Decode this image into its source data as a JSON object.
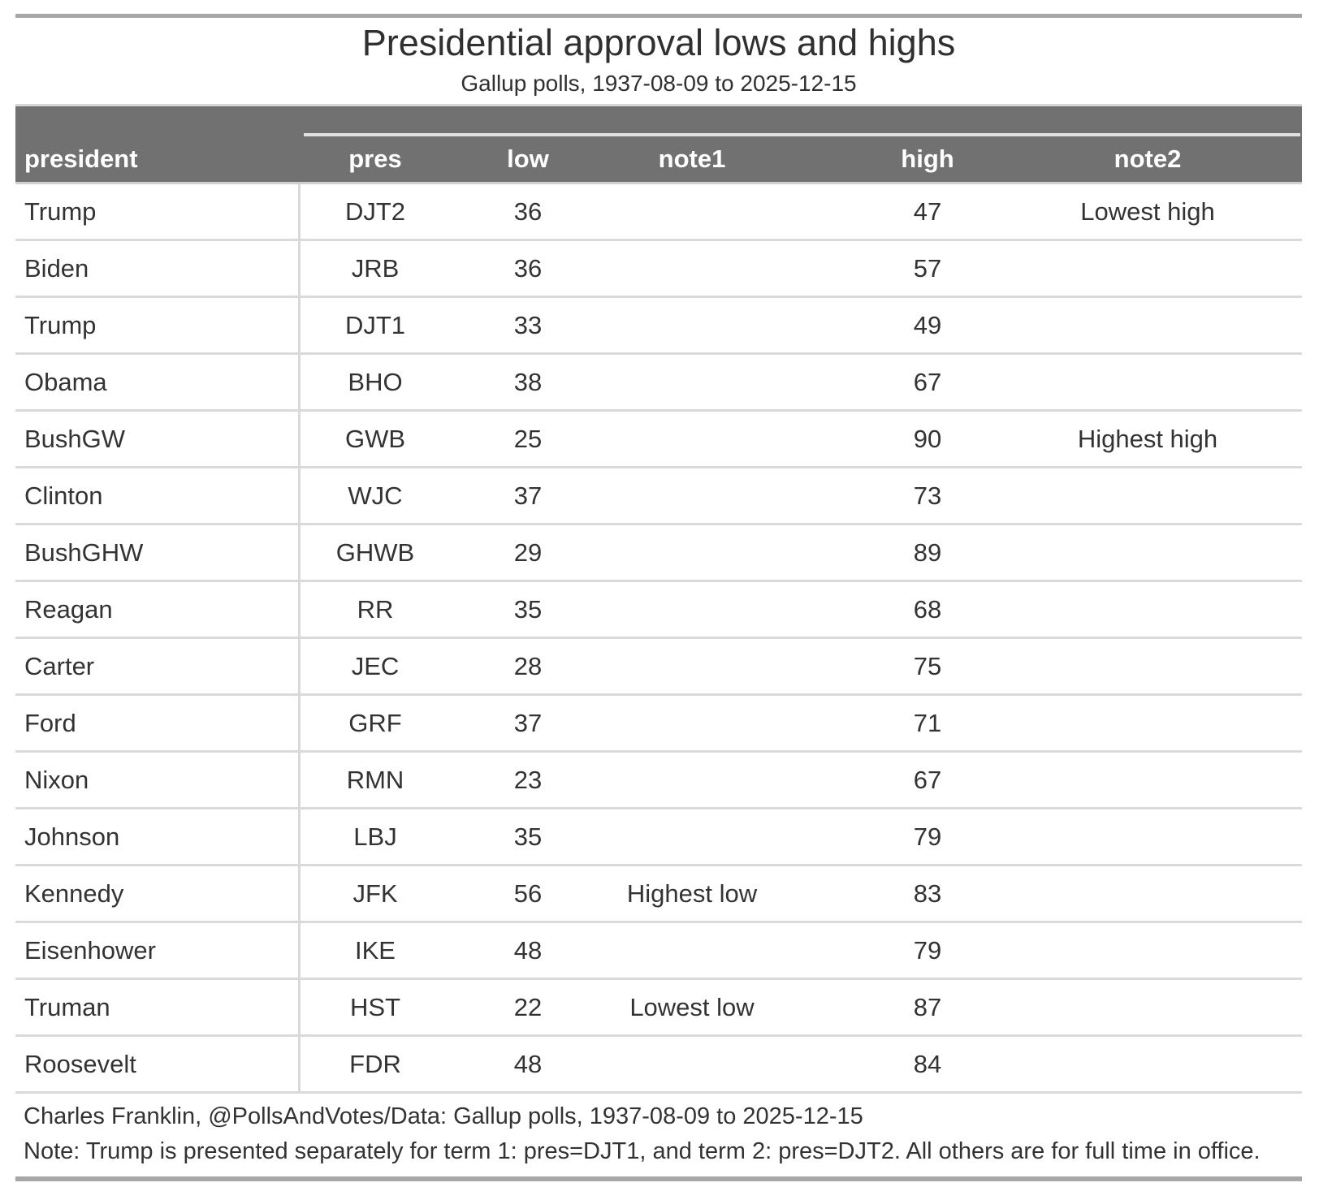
{
  "title": "Presidential approval lows and highs",
  "subtitle": "Gallup polls, 1937-08-09 to 2025-12-15",
  "chart_data": {
    "type": "table",
    "title": "Presidential approval lows and highs",
    "subtitle": "Gallup polls, 1937-08-09 to 2025-12-15",
    "columns": [
      "president",
      "pres",
      "low",
      "note1",
      "high",
      "note2"
    ],
    "rows": [
      [
        "Trump",
        "DJT2",
        36,
        "",
        47,
        "Lowest high"
      ],
      [
        "Biden",
        "JRB",
        36,
        "",
        57,
        ""
      ],
      [
        "Trump",
        "DJT1",
        33,
        "",
        49,
        ""
      ],
      [
        "Obama",
        "BHO",
        38,
        "",
        67,
        ""
      ],
      [
        "BushGW",
        "GWB",
        25,
        "",
        90,
        "Highest high"
      ],
      [
        "Clinton",
        "WJC",
        37,
        "",
        73,
        ""
      ],
      [
        "BushGHW",
        "GHWB",
        29,
        "",
        89,
        ""
      ],
      [
        "Reagan",
        "RR",
        35,
        "",
        68,
        ""
      ],
      [
        "Carter",
        "JEC",
        28,
        "",
        75,
        ""
      ],
      [
        "Ford",
        "GRF",
        37,
        "",
        71,
        ""
      ],
      [
        "Nixon",
        "RMN",
        23,
        "",
        67,
        ""
      ],
      [
        "Johnson",
        "LBJ",
        35,
        "",
        79,
        ""
      ],
      [
        "Kennedy",
        "JFK",
        56,
        "Highest low",
        83,
        ""
      ],
      [
        "Eisenhower",
        "IKE",
        48,
        "",
        79,
        ""
      ],
      [
        "Truman",
        "HST",
        22,
        "Lowest low",
        87,
        ""
      ],
      [
        "Roosevelt",
        "FDR",
        48,
        "",
        84,
        ""
      ]
    ]
  },
  "footer": {
    "source": "Charles Franklin, @PollsAndVotes/Data: Gallup polls, 1937-08-09 to 2025-12-15",
    "note": "Note: Trump is presented separately for term 1: pres=DJT1, and term 2: pres=DJT2. All others are for full time in office."
  },
  "colors": {
    "header_band": "#717171",
    "header_text": "#ffffff",
    "body_text": "#333333",
    "row_separator": "#dadada",
    "heading_separator": "#d6d6d6",
    "outer_border": "#a7a7a7",
    "spanner_underline": "#e2e2e2"
  }
}
